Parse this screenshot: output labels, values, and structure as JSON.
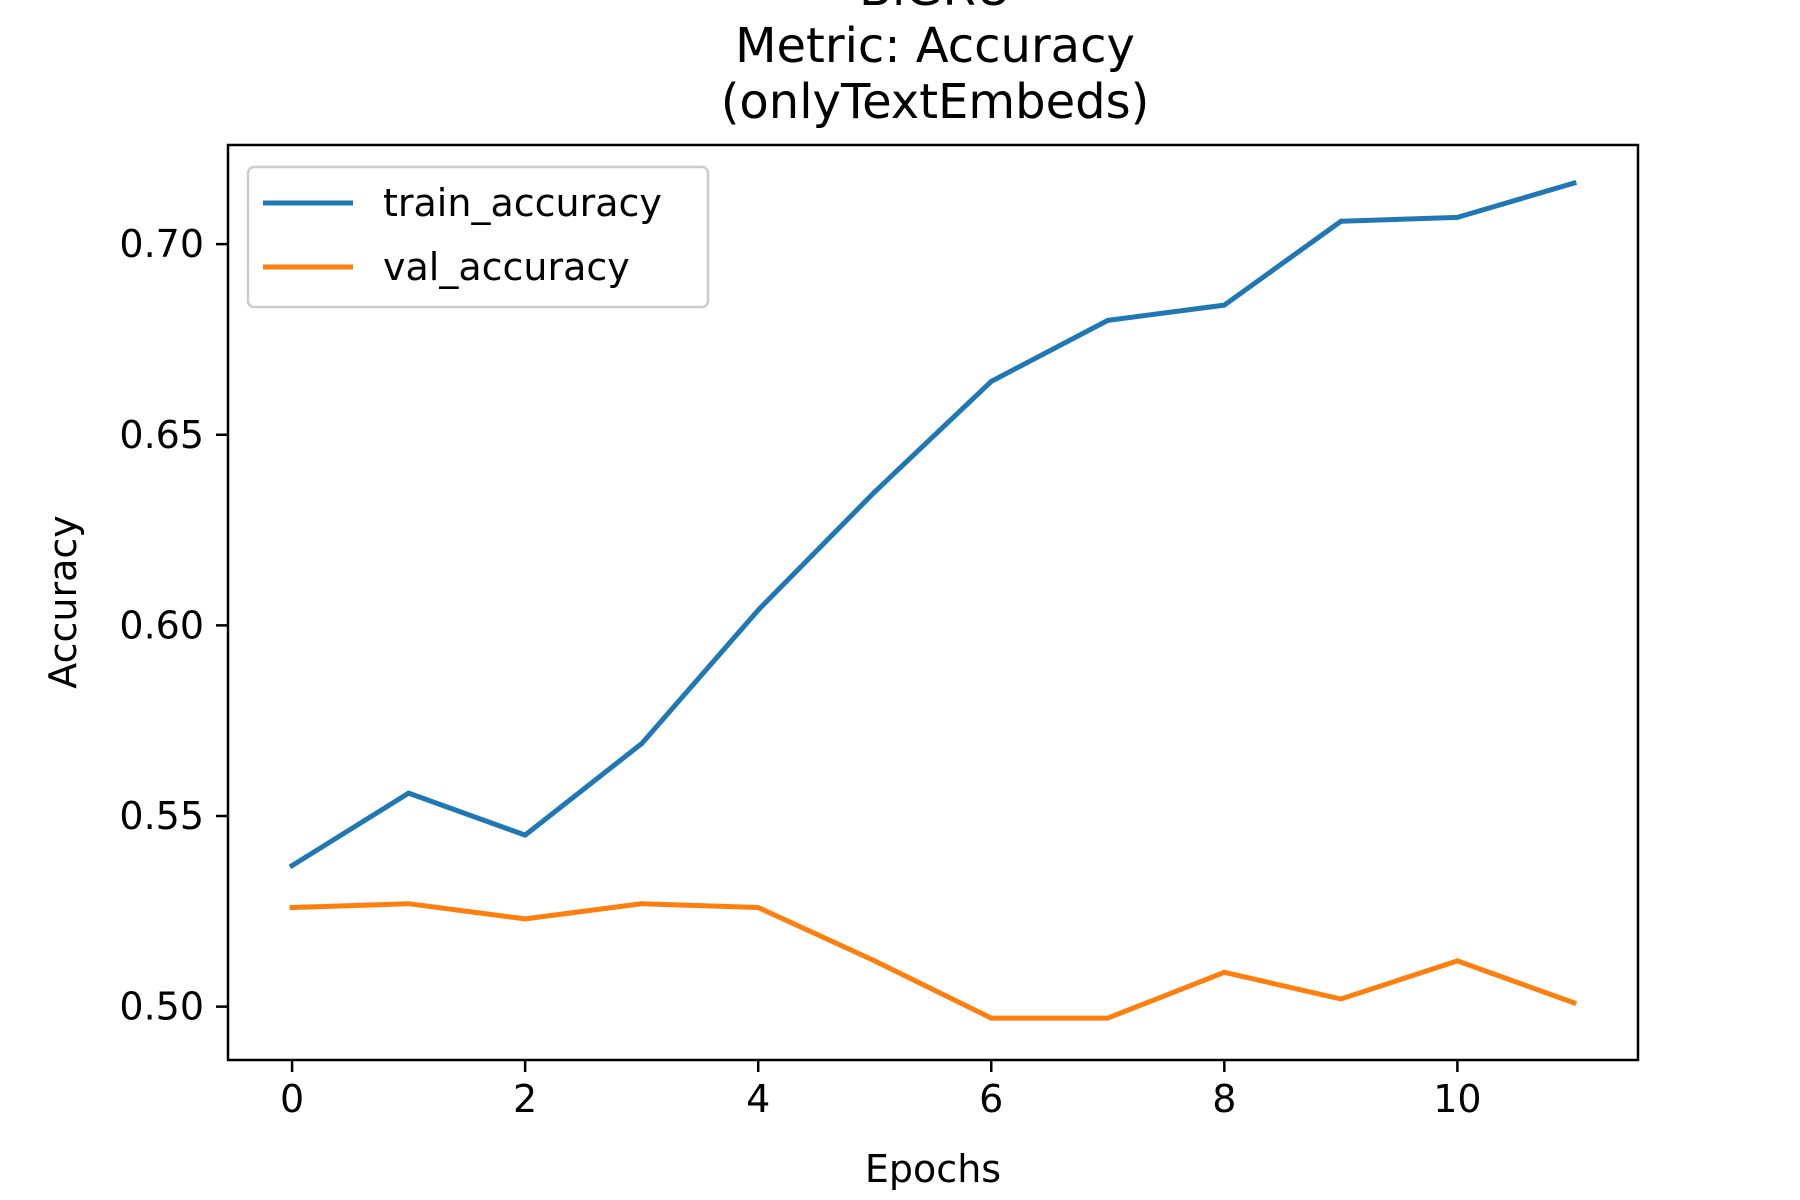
{
  "chart_data": {
    "type": "line",
    "title_lines": [
      "BiGRU",
      "Metric: Accuracy",
      "(onlyTextEmbeds)"
    ],
    "xlabel": "Epochs",
    "ylabel": "Accuracy",
    "xlim": [
      -0.55,
      11.55
    ],
    "ylim": [
      0.486,
      0.726
    ],
    "xticks": [
      0,
      2,
      4,
      6,
      8,
      10
    ],
    "xtick_labels": [
      "0",
      "2",
      "4",
      "6",
      "8",
      "10"
    ],
    "yticks": [
      0.5,
      0.55,
      0.6,
      0.65,
      0.7
    ],
    "ytick_labels": [
      "0.50",
      "0.55",
      "0.60",
      "0.65",
      "0.70"
    ],
    "grid": false,
    "legend_position": "upper-left",
    "x": [
      0,
      1,
      2,
      3,
      4,
      5,
      6,
      7,
      8,
      9,
      10,
      11
    ],
    "series": [
      {
        "name": "train_accuracy",
        "color": "#1f77b4",
        "values": [
          0.537,
          0.556,
          0.545,
          0.569,
          0.604,
          0.635,
          0.664,
          0.68,
          0.684,
          0.706,
          0.707,
          0.716
        ]
      },
      {
        "name": "val_accuracy",
        "color": "#ff7f0e",
        "values": [
          0.526,
          0.527,
          0.523,
          0.527,
          0.526,
          0.512,
          0.497,
          0.497,
          0.509,
          0.502,
          0.512,
          0.501
        ]
      }
    ]
  }
}
